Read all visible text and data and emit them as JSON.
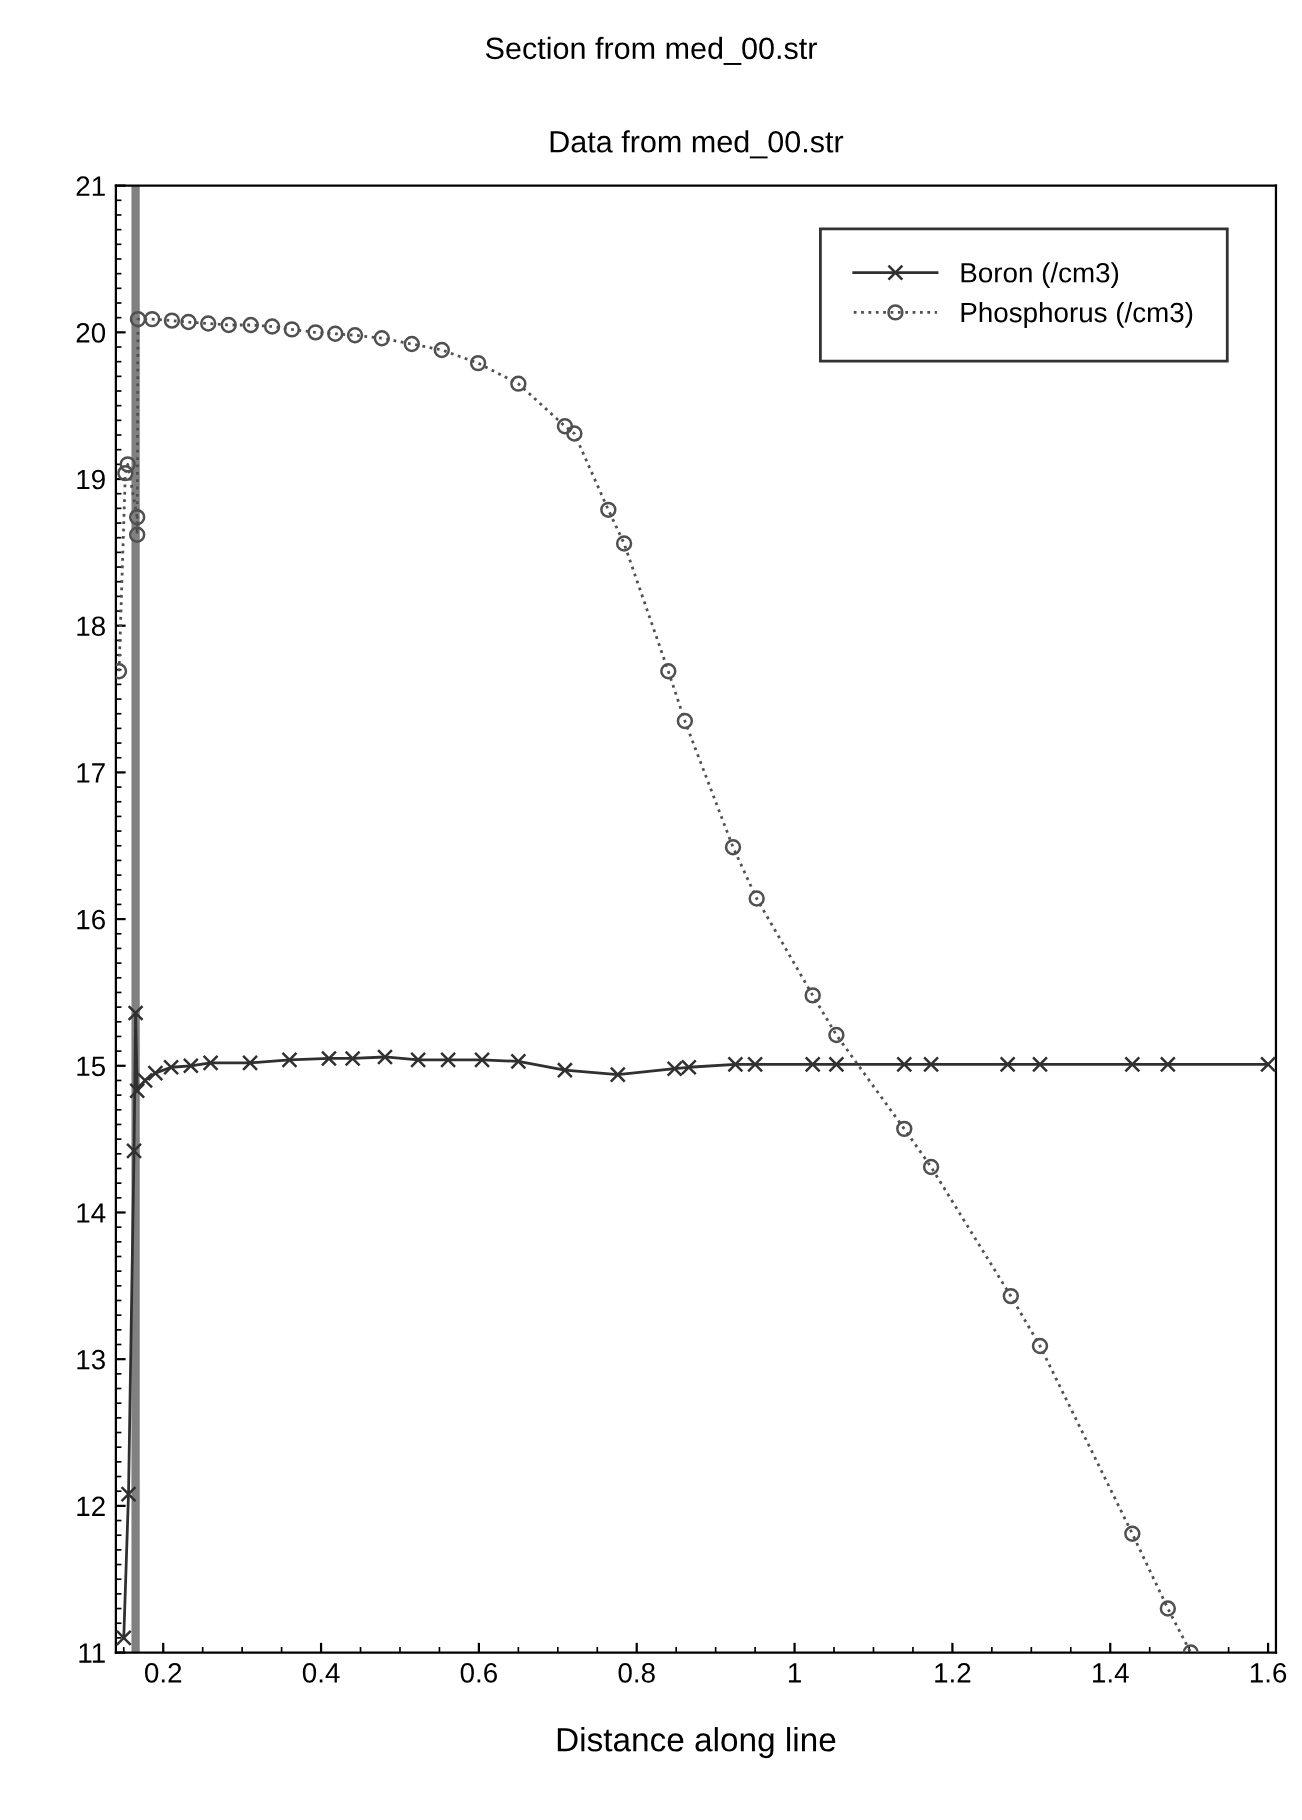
{
  "chart_data": {
    "type": "line",
    "title": "Section from med_00.str",
    "subtitle": "Data from med_00.str",
    "xlabel": "Distance along line",
    "xlim": [
      0.14,
      1.61
    ],
    "xticks": [
      0.2,
      0.4,
      0.6,
      0.8,
      1,
      1.2,
      1.4,
      1.6
    ],
    "ylim": [
      11,
      21
    ],
    "yticks": [
      11,
      12,
      13,
      14,
      15,
      16,
      17,
      18,
      19,
      20,
      21
    ],
    "grid": false,
    "legend": "top right",
    "ref_lines": [
      {
        "axis": "x",
        "value": 0.165,
        "color": "#808080"
      }
    ],
    "series": [
      {
        "name": "Boron (/cm3)",
        "color": "#303030",
        "marker": "cross",
        "line_style": "solid",
        "x": [
          0.15,
          0.156,
          0.163,
          0.165,
          0.167,
          0.177,
          0.19,
          0.21,
          0.235,
          0.26,
          0.31,
          0.36,
          0.41,
          0.44,
          0.481,
          0.523,
          0.561,
          0.604,
          0.65,
          0.709,
          0.776,
          0.848,
          0.866,
          0.925,
          0.95,
          1.023,
          1.053,
          1.139,
          1.173,
          1.27,
          1.311,
          1.428,
          1.473,
          1.6
        ],
        "values": [
          11.1,
          12.08,
          14.42,
          15.36,
          14.83,
          14.9,
          14.95,
          14.99,
          15.0,
          15.02,
          15.02,
          15.04,
          15.05,
          15.05,
          15.06,
          15.04,
          15.04,
          15.04,
          15.03,
          14.97,
          14.94,
          14.98,
          14.99,
          15.01,
          15.01,
          15.01,
          15.01,
          15.01,
          15.01,
          15.01,
          15.01,
          15.01,
          15.01,
          15.01
        ]
      },
      {
        "name": "Phosphorus (/cm3)",
        "color": "#505050",
        "marker": "circle",
        "line_style": "dotted",
        "x": [
          0.144,
          0.152,
          0.155,
          0.167,
          0.167,
          0.168,
          0.186,
          0.211,
          0.232,
          0.257,
          0.283,
          0.311,
          0.338,
          0.363,
          0.393,
          0.418,
          0.443,
          0.477,
          0.515,
          0.553,
          0.599,
          0.65,
          0.709,
          0.721,
          0.764,
          0.784,
          0.84,
          0.861,
          0.922,
          0.952,
          1.023,
          1.053,
          1.139,
          1.173,
          1.274,
          1.311,
          1.428,
          1.473,
          1.502
        ],
        "values": [
          17.69,
          19.04,
          19.1,
          18.74,
          18.62,
          20.09,
          20.09,
          20.08,
          20.07,
          20.06,
          20.05,
          20.05,
          20.04,
          20.02,
          20.0,
          19.99,
          19.98,
          19.96,
          19.92,
          19.88,
          19.79,
          19.65,
          19.36,
          19.31,
          18.79,
          18.56,
          17.69,
          17.35,
          16.49,
          16.14,
          15.48,
          15.21,
          14.57,
          14.31,
          13.43,
          13.09,
          11.81,
          11.3,
          11.0
        ]
      }
    ]
  }
}
